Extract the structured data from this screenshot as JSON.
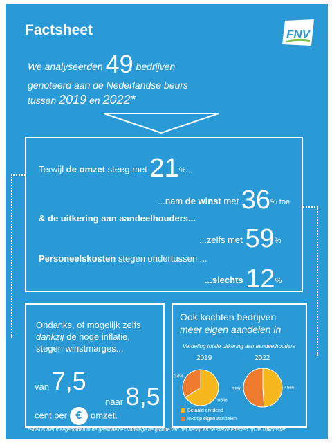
{
  "title": "Factsheet",
  "logo_text": "FNV",
  "intro": {
    "line1_a": "We analyseerden",
    "line1_num": "49",
    "line1_b": "bedrijven",
    "line2": "genoteerd aan de Nederlandse beurs",
    "line3_a": "tussen",
    "year1": "2019",
    "line3_en": "en",
    "year2": "2022*"
  },
  "box1": {
    "l1_a": "Terwijl",
    "l1_b": "de omzet",
    "l1_c": "steeg met",
    "l1_num": "21",
    "l1_pct": "%...",
    "l2_a": "...nam",
    "l2_b": "de winst",
    "l2_c": "met",
    "l2_num": "36",
    "l2_pct": "% toe",
    "l3": "& de uitkering aan aandeelhouders...",
    "l4_a": "...zelfs met",
    "l4_num": "59",
    "l4_pct": "%",
    "l5_b": "Personeelskosten",
    "l5_c": "stegen ondertussen ...",
    "l6_a": "...slechts",
    "l6_num": "12",
    "l6_pct": "%"
  },
  "box2": {
    "t1": "Ondanks, of mogelijk zelfs",
    "t2_i": "dankzij",
    "t2_b": "de hoge inflatie,",
    "t3": "stegen winstmarges...",
    "van": "van",
    "from": "7,5",
    "naar": "naar",
    "to": "8,5",
    "cent_a": "cent per",
    "euro": "€",
    "cent_b": "omzet."
  },
  "box3": {
    "t1": "Ook kochten bedrijven",
    "t2": "meer eigen aandelen in",
    "subtitle": "Verdeling totale uitkering aan aandeelhouders",
    "year_left": "2019",
    "year_right": "2022",
    "legend_1": "Betaald dividend",
    "legend_2": "Inkoop eigen aandelen"
  },
  "chart_data": {
    "type": "pie",
    "title": "Verdeling totale uitkering aan aandeelhouders",
    "categories": [
      "Betaald dividend",
      "Inkoop eigen aandelen"
    ],
    "series": [
      {
        "name": "2019",
        "values": [
          66,
          34
        ]
      },
      {
        "name": "2022",
        "values": [
          49,
          51
        ]
      }
    ],
    "labels_2019": [
      "66%",
      "34%"
    ],
    "labels_2022": [
      "49%",
      "51%"
    ],
    "colors": [
      "#f6b81c",
      "#ee7b2e"
    ]
  },
  "colors": {
    "background": "#2a9ad6",
    "yellow": "#f6b81c",
    "orange": "#ee7b2e"
  },
  "footnote": "*Shell is niet meegenomen in de gemiddeldes vanwege de grootte van het bedrijf en de sterke effecten op de uitkomsten"
}
